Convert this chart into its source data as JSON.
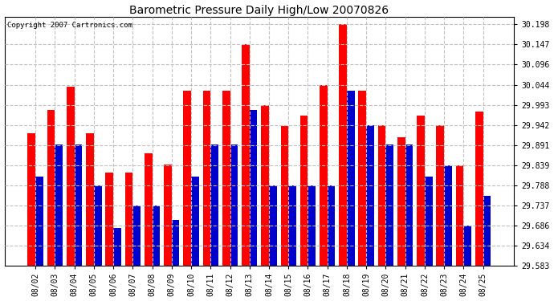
{
  "title": "Barometric Pressure Daily High/Low 20070826",
  "copyright": "Copyright 2007 Cartronics.com",
  "dates": [
    "08/02",
    "08/03",
    "08/04",
    "08/05",
    "08/06",
    "08/07",
    "08/08",
    "08/09",
    "08/10",
    "08/11",
    "08/12",
    "08/13",
    "08/14",
    "08/15",
    "08/16",
    "08/17",
    "08/18",
    "08/19",
    "08/20",
    "08/21",
    "08/22",
    "08/23",
    "08/24",
    "08/25"
  ],
  "highs": [
    29.92,
    29.98,
    30.04,
    29.92,
    29.82,
    29.82,
    29.87,
    29.84,
    30.03,
    30.03,
    30.03,
    30.147,
    29.993,
    29.94,
    29.965,
    30.044,
    30.198,
    30.03,
    29.942,
    29.91,
    29.965,
    29.942,
    29.839,
    29.975
  ],
  "lows": [
    29.81,
    29.893,
    29.893,
    29.788,
    29.68,
    29.737,
    29.737,
    29.7,
    29.81,
    29.893,
    29.893,
    29.98,
    29.788,
    29.788,
    29.788,
    29.788,
    30.03,
    29.942,
    29.893,
    29.893,
    29.81,
    29.839,
    29.686,
    29.762
  ],
  "ylim_min": 29.583,
  "ylim_max": 30.218,
  "yticks": [
    29.583,
    29.634,
    29.686,
    29.737,
    29.788,
    29.839,
    29.891,
    29.942,
    29.993,
    30.044,
    30.096,
    30.147,
    30.198
  ],
  "high_color": "#ff0000",
  "low_color": "#0000cc",
  "bg_color": "#ffffff",
  "plot_bg_color": "#ffffff",
  "grid_color": "#c0c0c0",
  "title_color": "#000000",
  "bar_width": 0.4
}
